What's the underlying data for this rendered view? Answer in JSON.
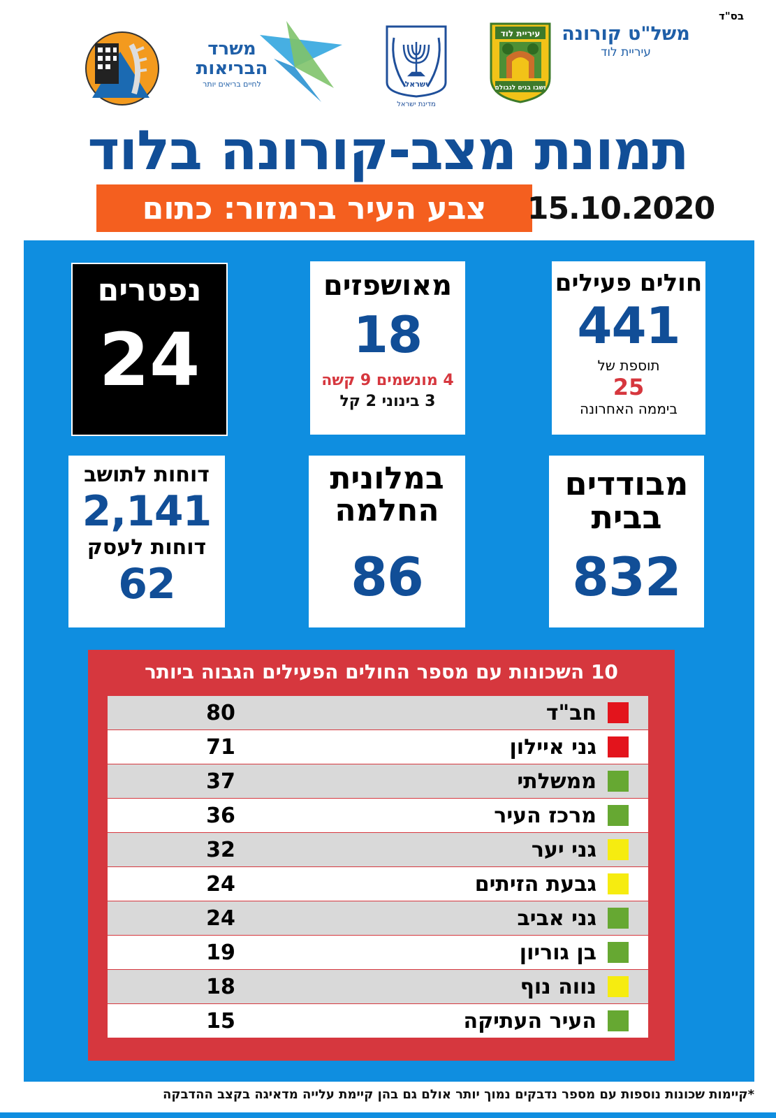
{
  "corner_label": "בס\"ד",
  "header": {
    "org_title": "משל\"ט קורונה",
    "org_subtitle": "עיריית לוד",
    "lod_crest": {
      "top_text": "עיריית לוד",
      "bottom_text": "ושבו בנים לגבולם"
    },
    "israel_emblem": {
      "text": "ישראל",
      "caption": "מדינת ישראל"
    },
    "moh_logo": {
      "line1": "משרד",
      "line2": "הבריאות",
      "tagline": "לחיים בריאים יותר"
    }
  },
  "title": "תמונת מצב-קורונה בלוד",
  "status": "צבע העיר ברמזור: כתום",
  "date": "15.10.2020",
  "cards": {
    "active": {
      "title": "חולים פעילים",
      "value": "441",
      "sub1": "תוספת של",
      "delta": "25",
      "sub2": "ביממה האחרונה"
    },
    "hospitalized": {
      "title": "מאושפזים",
      "value": "18",
      "line_severe": "4 מונשמים 9 קשה",
      "line_mild": "3 בינוני 2 קל"
    },
    "deceased": {
      "title": "נפטרים",
      "value": "24"
    },
    "home_isolation": {
      "title_line1": "מבודדים",
      "title_line2": "בבית",
      "value": "832"
    },
    "recovery_hotel": {
      "title_line1": "במלונית",
      "title_line2": "החלמה",
      "value": "86"
    },
    "fines": {
      "resident_label": "דוחות לתושב",
      "resident_value": "2,141",
      "business_label": "דוחות לעסק",
      "business_value": "62"
    }
  },
  "top10": {
    "title": "10 השכונות עם מספר החולים הפעילים הגבוה ביותר",
    "rows": [
      {
        "name": "חב\"ד",
        "value": "80",
        "color": "#e3141c"
      },
      {
        "name": "גני איילון",
        "value": "71",
        "color": "#e3141c"
      },
      {
        "name": "ממשלתי",
        "value": "37",
        "color": "#66a832"
      },
      {
        "name": "מרכז העיר",
        "value": "36",
        "color": "#66a832"
      },
      {
        "name": "גני יער",
        "value": "32",
        "color": "#f6ec10"
      },
      {
        "name": "גבעת הזיתים",
        "value": "24",
        "color": "#f6ec10"
      },
      {
        "name": "גני אביב",
        "value": "24",
        "color": "#66a832"
      },
      {
        "name": "בן גוריון",
        "value": "19",
        "color": "#66a832"
      },
      {
        "name": "נווה נוף",
        "value": "18",
        "color": "#f6ec10"
      },
      {
        "name": "העיר העתיקה",
        "value": "15",
        "color": "#66a832"
      }
    ]
  },
  "footnote": "*קיימות שכונות נוספות עם מספר נדבקים נמוך יותר אולם גם בהן קיימת עלייה מדאיגה בקצב ההדבקה",
  "colors": {
    "blue_panel": "#0f8ee0",
    "title_blue": "#114e97",
    "orange": "#f45f1f",
    "table_red": "#d6373e",
    "delta_red": "#d6373e"
  }
}
